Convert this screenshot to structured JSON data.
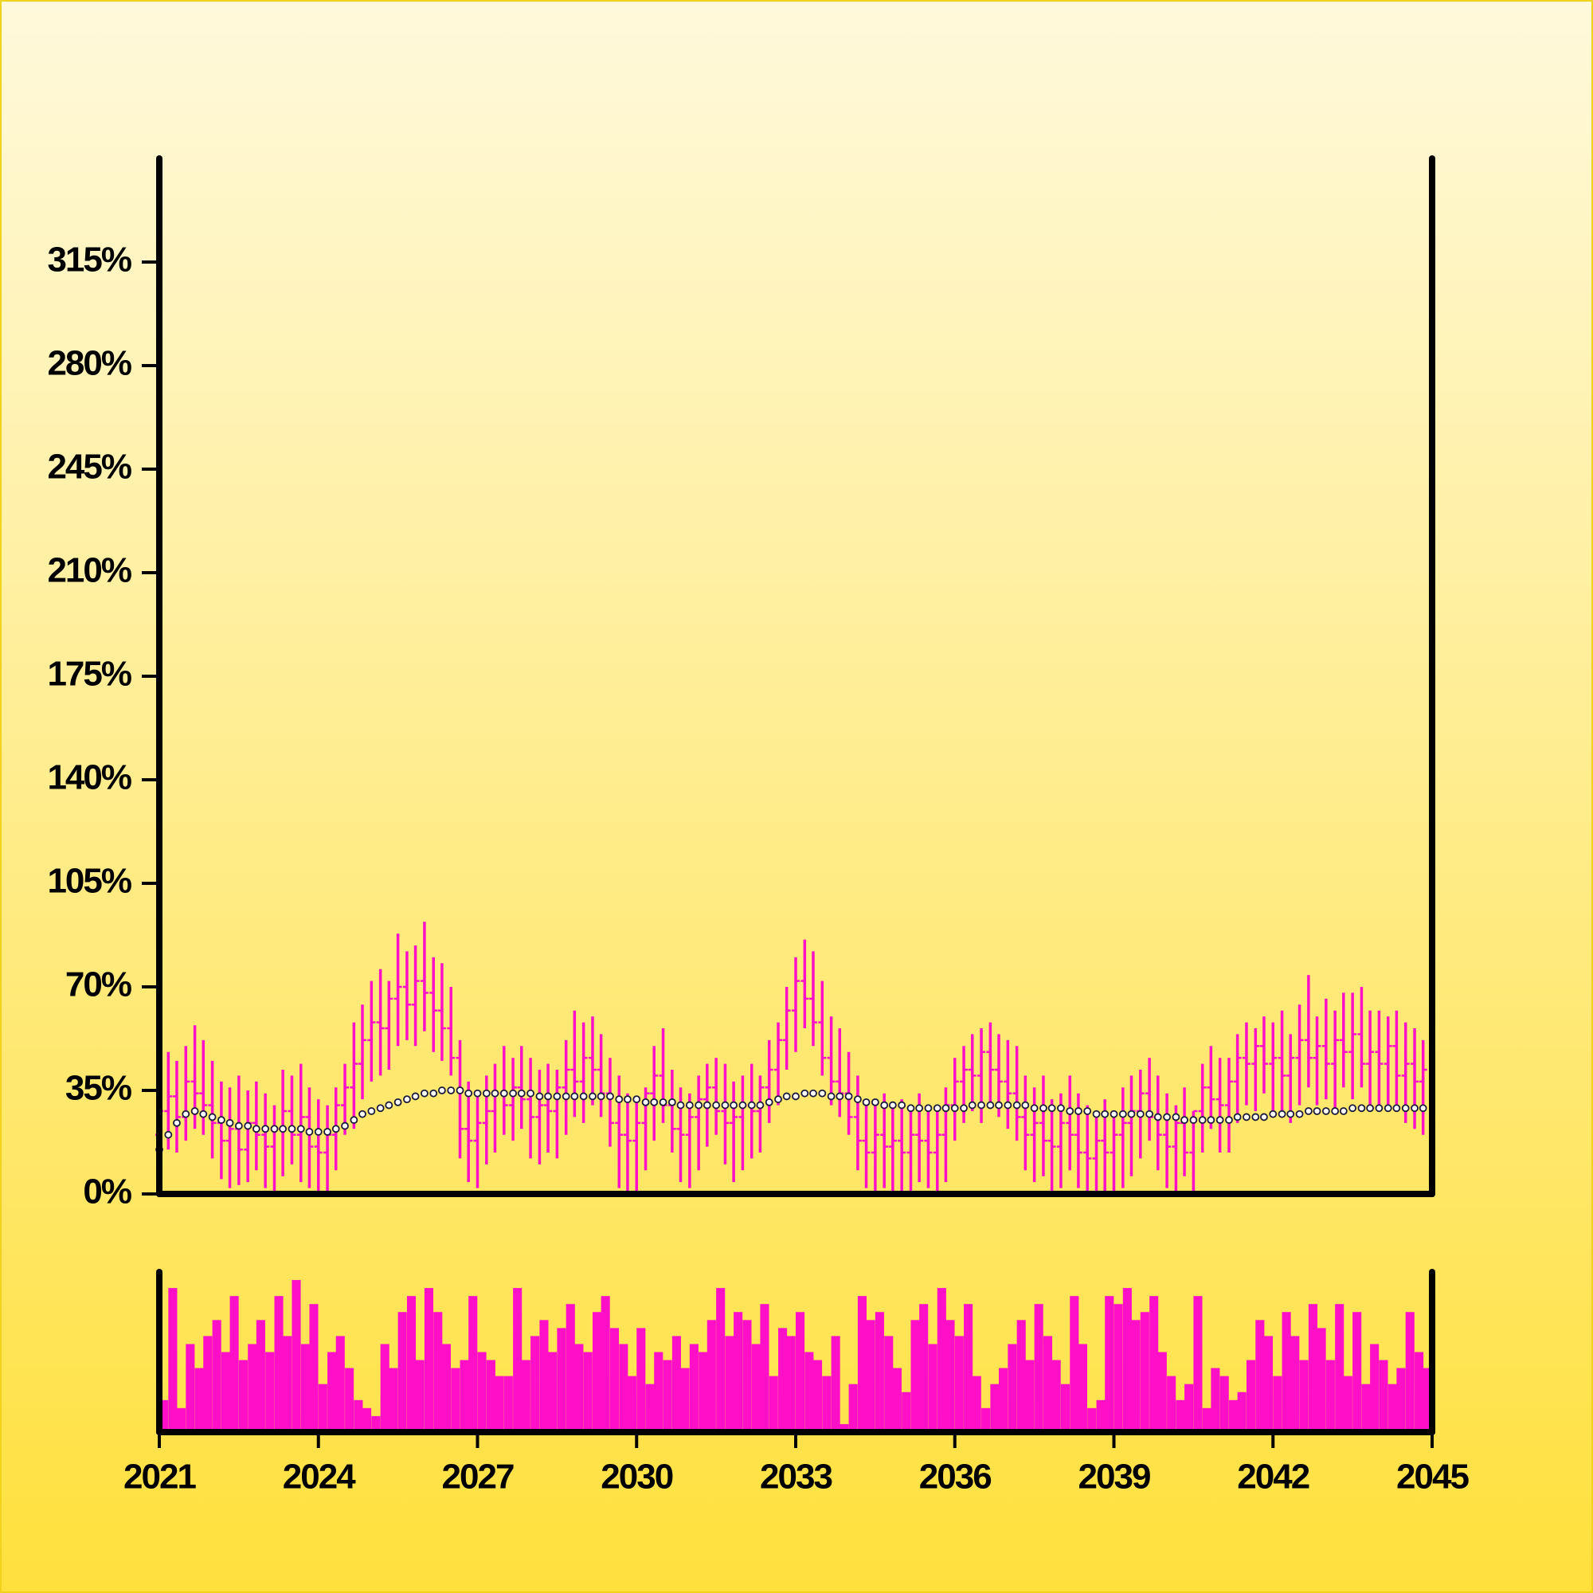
{
  "chart_data": {
    "type": "ohlc",
    "color": "#ff10c8",
    "ma_color": "#1a1a3a",
    "volume_color": "#ff10c8",
    "xlim": [
      2021,
      2045
    ],
    "xticks": [
      2021,
      2024,
      2027,
      2030,
      2033,
      2036,
      2039,
      2042,
      2045
    ],
    "ylim": [
      0,
      350
    ],
    "yticks": [
      {
        "value": 0,
        "label": "0%"
      },
      {
        "value": 35,
        "label": "35%"
      },
      {
        "value": 70,
        "label": "70%"
      },
      {
        "value": 105,
        "label": "105%"
      },
      {
        "value": 140,
        "label": "140%"
      },
      {
        "value": 175,
        "label": "175%"
      },
      {
        "value": 210,
        "label": "210%"
      },
      {
        "value": 245,
        "label": "245%"
      },
      {
        "value": 280,
        "label": "280%"
      },
      {
        "value": 315,
        "label": "315%"
      }
    ],
    "volume_ylim": [
      0,
      100
    ],
    "x": [
      2021,
      2021.17,
      2021.33,
      2021.5,
      2021.67,
      2021.83,
      2022,
      2022.17,
      2022.33,
      2022.5,
      2022.67,
      2022.83,
      2023,
      2023.17,
      2023.33,
      2023.5,
      2023.67,
      2023.83,
      2024,
      2024.17,
      2024.33,
      2024.5,
      2024.67,
      2024.83,
      2025,
      2025.17,
      2025.33,
      2025.5,
      2025.67,
      2025.83,
      2026,
      2026.17,
      2026.33,
      2026.5,
      2026.67,
      2026.83,
      2027,
      2027.17,
      2027.33,
      2027.5,
      2027.67,
      2027.83,
      2028,
      2028.17,
      2028.33,
      2028.5,
      2028.67,
      2028.83,
      2029,
      2029.17,
      2029.33,
      2029.5,
      2029.67,
      2029.83,
      2030,
      2030.17,
      2030.33,
      2030.5,
      2030.67,
      2030.83,
      2031,
      2031.17,
      2031.33,
      2031.5,
      2031.67,
      2031.83,
      2032,
      2032.17,
      2032.33,
      2032.5,
      2032.67,
      2032.83,
      2033,
      2033.17,
      2033.33,
      2033.5,
      2033.67,
      2033.83,
      2034,
      2034.17,
      2034.33,
      2034.5,
      2034.67,
      2034.83,
      2035,
      2035.17,
      2035.33,
      2035.5,
      2035.67,
      2035.83,
      2036,
      2036.17,
      2036.33,
      2036.5,
      2036.67,
      2036.83,
      2037,
      2037.17,
      2037.33,
      2037.5,
      2037.67,
      2037.83,
      2038,
      2038.17,
      2038.33,
      2038.5,
      2038.67,
      2038.83,
      2039,
      2039.17,
      2039.33,
      2039.5,
      2039.67,
      2039.83,
      2040,
      2040.17,
      2040.33,
      2040.5,
      2040.67,
      2040.83,
      2041,
      2041.17,
      2041.33,
      2041.5,
      2041.67,
      2041.83,
      2042,
      2042.17,
      2042.33,
      2042.5,
      2042.67,
      2042.83,
      2043,
      2043.17,
      2043.33,
      2043.5,
      2043.67,
      2043.83,
      2044,
      2044.17,
      2044.33,
      2044.5,
      2044.67,
      2044.83
    ],
    "ohlc": [
      [
        20,
        40,
        10,
        28
      ],
      [
        28,
        48,
        15,
        33
      ],
      [
        33,
        45,
        14,
        26
      ],
      [
        26,
        50,
        18,
        38
      ],
      [
        38,
        57,
        22,
        34
      ],
      [
        34,
        52,
        20,
        30
      ],
      [
        30,
        45,
        12,
        24
      ],
      [
        24,
        38,
        5,
        18
      ],
      [
        18,
        36,
        2,
        22
      ],
      [
        22,
        40,
        3,
        15
      ],
      [
        15,
        35,
        4,
        24
      ],
      [
        24,
        38,
        8,
        20
      ],
      [
        20,
        34,
        2,
        16
      ],
      [
        16,
        30,
        1,
        22
      ],
      [
        22,
        42,
        6,
        28
      ],
      [
        28,
        40,
        10,
        20
      ],
      [
        20,
        44,
        4,
        26
      ],
      [
        26,
        36,
        2,
        16
      ],
      [
        16,
        32,
        1,
        14
      ],
      [
        14,
        30,
        0,
        20
      ],
      [
        20,
        36,
        8,
        30
      ],
      [
        30,
        44,
        20,
        36
      ],
      [
        36,
        58,
        22,
        44
      ],
      [
        44,
        64,
        32,
        52
      ],
      [
        52,
        72,
        38,
        58
      ],
      [
        58,
        76,
        40,
        56
      ],
      [
        56,
        72,
        42,
        66
      ],
      [
        66,
        88,
        50,
        70
      ],
      [
        70,
        82,
        52,
        64
      ],
      [
        64,
        84,
        50,
        72
      ],
      [
        72,
        92,
        55,
        68
      ],
      [
        68,
        80,
        48,
        62
      ],
      [
        62,
        78,
        45,
        56
      ],
      [
        56,
        70,
        40,
        46
      ],
      [
        46,
        52,
        12,
        22
      ],
      [
        22,
        38,
        4,
        18
      ],
      [
        18,
        34,
        2,
        24
      ],
      [
        24,
        40,
        10,
        28
      ],
      [
        28,
        44,
        14,
        34
      ],
      [
        34,
        50,
        20,
        30
      ],
      [
        30,
        46,
        18,
        36
      ],
      [
        36,
        50,
        22,
        32
      ],
      [
        32,
        46,
        12,
        26
      ],
      [
        26,
        42,
        10,
        30
      ],
      [
        30,
        44,
        14,
        28
      ],
      [
        28,
        42,
        12,
        36
      ],
      [
        36,
        52,
        20,
        42
      ],
      [
        42,
        62,
        26,
        38
      ],
      [
        38,
        58,
        24,
        46
      ],
      [
        46,
        60,
        30,
        42
      ],
      [
        42,
        54,
        26,
        34
      ],
      [
        34,
        46,
        16,
        24
      ],
      [
        24,
        40,
        2,
        20
      ],
      [
        20,
        34,
        0,
        18
      ],
      [
        18,
        32,
        0,
        24
      ],
      [
        24,
        36,
        8,
        34
      ],
      [
        34,
        50,
        18,
        40
      ],
      [
        40,
        56,
        24,
        30
      ],
      [
        30,
        42,
        14,
        22
      ],
      [
        22,
        36,
        4,
        20
      ],
      [
        20,
        34,
        2,
        26
      ],
      [
        26,
        40,
        8,
        32
      ],
      [
        32,
        44,
        16,
        36
      ],
      [
        36,
        46,
        20,
        28
      ],
      [
        28,
        44,
        10,
        24
      ],
      [
        24,
        38,
        4,
        26
      ],
      [
        26,
        40,
        8,
        30
      ],
      [
        30,
        44,
        12,
        28
      ],
      [
        28,
        40,
        14,
        36
      ],
      [
        36,
        52,
        24,
        42
      ],
      [
        42,
        58,
        30,
        52
      ],
      [
        52,
        70,
        42,
        62
      ],
      [
        62,
        80,
        48,
        72
      ],
      [
        72,
        86,
        56,
        66
      ],
      [
        66,
        82,
        50,
        58
      ],
      [
        58,
        72,
        40,
        46
      ],
      [
        46,
        60,
        30,
        38
      ],
      [
        38,
        56,
        26,
        34
      ],
      [
        34,
        48,
        20,
        26
      ],
      [
        26,
        40,
        8,
        18
      ],
      [
        18,
        32,
        2,
        14
      ],
      [
        14,
        30,
        0,
        20
      ],
      [
        20,
        34,
        2,
        16
      ],
      [
        16,
        30,
        0,
        18
      ],
      [
        18,
        32,
        0,
        14
      ],
      [
        14,
        28,
        0,
        20
      ],
      [
        20,
        34,
        4,
        18
      ],
      [
        18,
        30,
        2,
        14
      ],
      [
        14,
        28,
        0,
        20
      ],
      [
        20,
        36,
        4,
        30
      ],
      [
        30,
        46,
        18,
        38
      ],
      [
        38,
        50,
        24,
        42
      ],
      [
        42,
        54,
        28,
        40
      ],
      [
        40,
        56,
        24,
        48
      ],
      [
        48,
        58,
        30,
        42
      ],
      [
        42,
        54,
        26,
        38
      ],
      [
        38,
        52,
        22,
        34
      ],
      [
        34,
        50,
        18,
        26
      ],
      [
        26,
        40,
        8,
        20
      ],
      [
        20,
        36,
        4,
        24
      ],
      [
        24,
        40,
        6,
        18
      ],
      [
        18,
        32,
        0,
        16
      ],
      [
        16,
        34,
        2,
        24
      ],
      [
        24,
        40,
        8,
        20
      ],
      [
        20,
        34,
        2,
        14
      ],
      [
        14,
        30,
        0,
        12
      ],
      [
        12,
        28,
        0,
        18
      ],
      [
        18,
        32,
        0,
        14
      ],
      [
        14,
        28,
        0,
        20
      ],
      [
        20,
        36,
        2,
        24
      ],
      [
        24,
        40,
        6,
        28
      ],
      [
        28,
        42,
        12,
        34
      ],
      [
        34,
        46,
        18,
        26
      ],
      [
        26,
        40,
        8,
        20
      ],
      [
        20,
        34,
        2,
        16
      ],
      [
        16,
        30,
        0,
        24
      ],
      [
        24,
        36,
        6,
        14
      ],
      [
        14,
        28,
        0,
        28
      ],
      [
        28,
        44,
        14,
        36
      ],
      [
        36,
        50,
        22,
        32
      ],
      [
        32,
        46,
        14,
        30
      ],
      [
        30,
        46,
        14,
        38
      ],
      [
        38,
        54,
        24,
        46
      ],
      [
        46,
        58,
        30,
        44
      ],
      [
        44,
        56,
        28,
        50
      ],
      [
        50,
        60,
        34,
        44
      ],
      [
        44,
        58,
        26,
        46
      ],
      [
        46,
        62,
        28,
        40
      ],
      [
        40,
        54,
        24,
        46
      ],
      [
        46,
        64,
        30,
        52
      ],
      [
        52,
        74,
        36,
        46
      ],
      [
        46,
        60,
        30,
        50
      ],
      [
        50,
        66,
        32,
        44
      ],
      [
        44,
        62,
        28,
        52
      ],
      [
        52,
        68,
        36,
        48
      ],
      [
        48,
        68,
        32,
        54
      ],
      [
        54,
        70,
        36,
        44
      ],
      [
        44,
        62,
        28,
        48
      ],
      [
        48,
        62,
        30,
        44
      ],
      [
        44,
        60,
        28,
        50
      ],
      [
        50,
        62,
        30,
        40
      ],
      [
        40,
        58,
        24,
        44
      ],
      [
        44,
        56,
        22,
        38
      ],
      [
        38,
        52,
        20,
        42
      ]
    ],
    "ma": [
      15,
      20,
      24,
      27,
      28,
      27,
      26,
      25,
      24,
      23,
      23,
      22,
      22,
      22,
      22,
      22,
      22,
      21,
      21,
      21,
      22,
      23,
      25,
      27,
      28,
      29,
      30,
      31,
      32,
      33,
      34,
      34,
      35,
      35,
      35,
      34,
      34,
      34,
      34,
      34,
      34,
      34,
      34,
      33,
      33,
      33,
      33,
      33,
      33,
      33,
      33,
      33,
      32,
      32,
      32,
      31,
      31,
      31,
      31,
      30,
      30,
      30,
      30,
      30,
      30,
      30,
      30,
      30,
      30,
      31,
      32,
      33,
      33,
      34,
      34,
      34,
      33,
      33,
      33,
      32,
      31,
      31,
      30,
      30,
      30,
      29,
      29,
      29,
      29,
      29,
      29,
      29,
      30,
      30,
      30,
      30,
      30,
      30,
      30,
      29,
      29,
      29,
      29,
      28,
      28,
      28,
      27,
      27,
      27,
      27,
      27,
      27,
      27,
      26,
      26,
      26,
      25,
      25,
      25,
      25,
      25,
      25,
      26,
      26,
      26,
      26,
      27,
      27,
      27,
      27,
      28,
      28,
      28,
      28,
      28,
      29,
      29,
      29,
      29,
      29,
      29,
      29,
      29,
      29
    ],
    "volume": [
      20,
      90,
      15,
      55,
      40,
      60,
      70,
      50,
      85,
      45,
      55,
      70,
      50,
      85,
      60,
      95,
      55,
      80,
      30,
      50,
      60,
      40,
      20,
      15,
      10,
      55,
      40,
      75,
      85,
      45,
      90,
      75,
      55,
      40,
      45,
      85,
      50,
      45,
      35,
      35,
      90,
      45,
      60,
      70,
      50,
      65,
      80,
      55,
      50,
      75,
      85,
      65,
      55,
      35,
      65,
      30,
      50,
      45,
      60,
      40,
      55,
      50,
      70,
      90,
      60,
      75,
      70,
      55,
      80,
      35,
      65,
      60,
      75,
      50,
      45,
      35,
      60,
      5,
      30,
      85,
      70,
      75,
      60,
      40,
      25,
      70,
      80,
      55,
      90,
      70,
      60,
      80,
      35,
      15,
      30,
      40,
      55,
      70,
      45,
      80,
      60,
      45,
      30,
      85,
      55,
      15,
      20,
      85,
      80,
      90,
      70,
      75,
      85,
      50,
      35,
      20,
      30,
      85,
      15,
      40,
      35,
      20,
      25,
      45,
      70,
      60,
      35,
      75,
      60,
      45,
      80,
      65,
      45,
      80,
      35,
      75,
      30,
      55,
      45,
      30,
      40,
      75,
      50,
      40
    ]
  }
}
